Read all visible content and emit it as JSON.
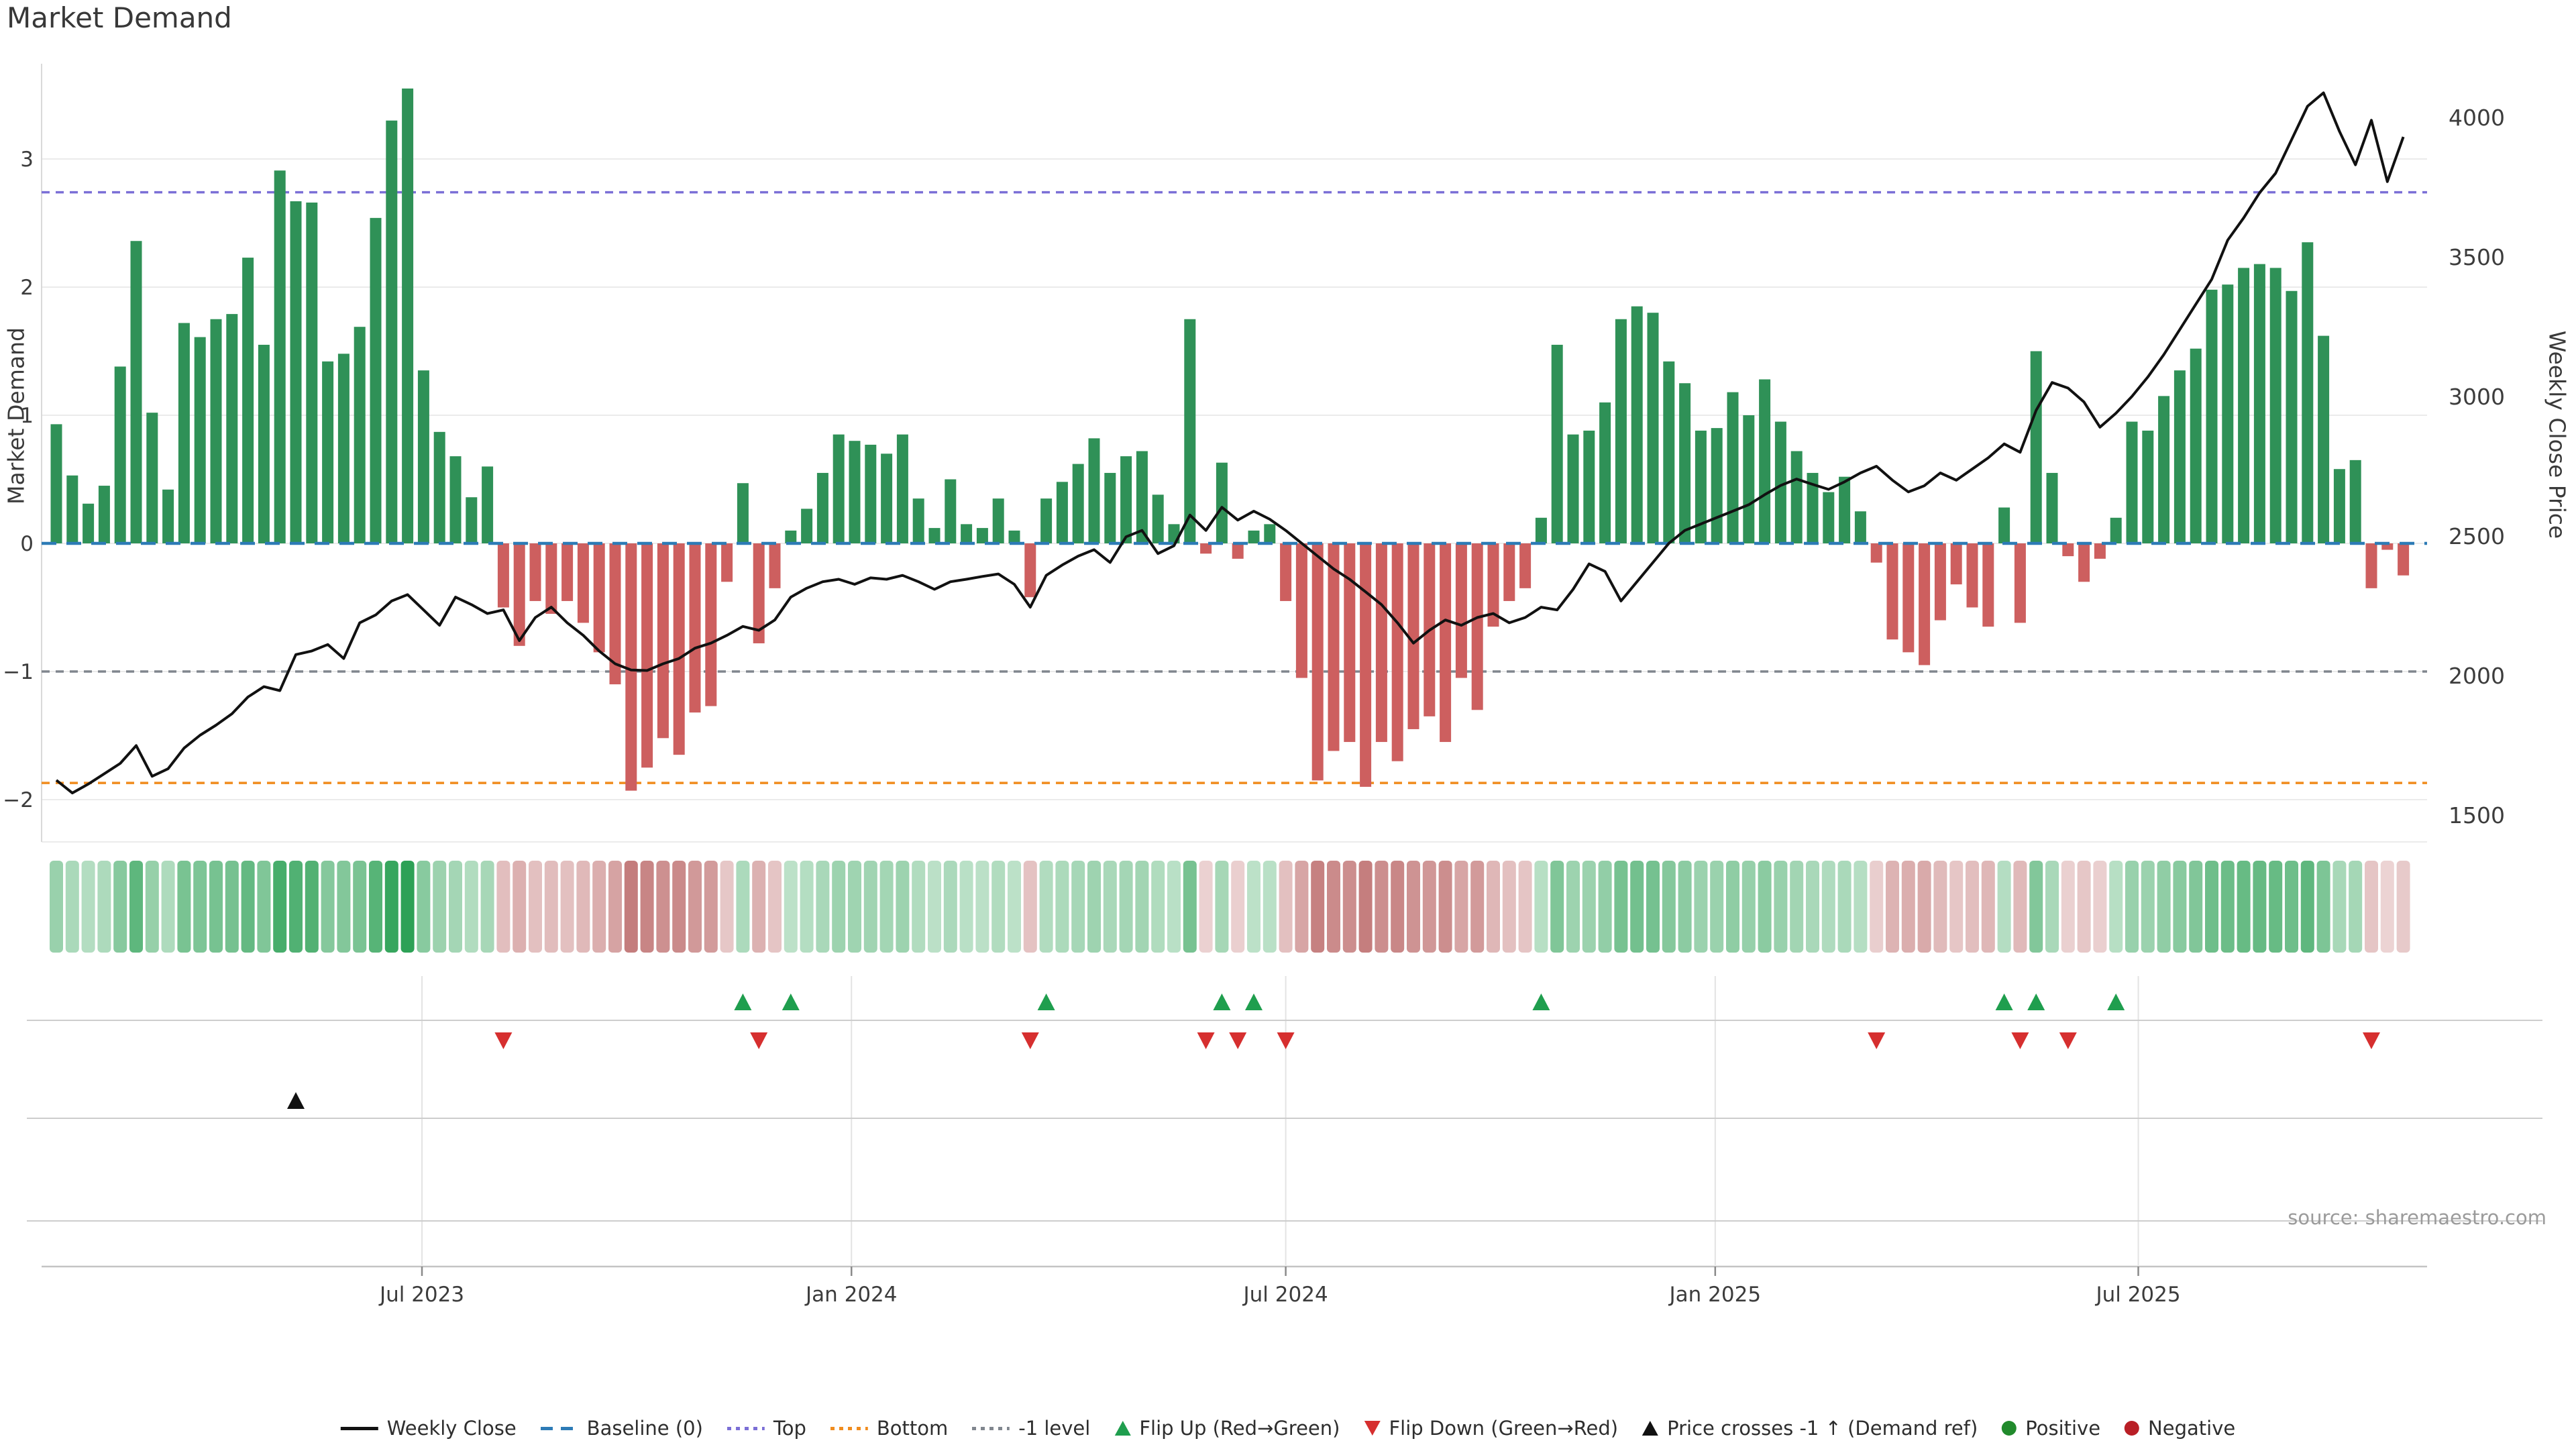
{
  "title": "Market Demand",
  "source": "source: sharemaestro.com",
  "axes": {
    "left": {
      "label": "Market Demand",
      "ticks": [
        3,
        2,
        1,
        0,
        -1,
        -2
      ]
    },
    "right": {
      "label": "Weekly Close Price",
      "ticks": [
        4000,
        3500,
        3000,
        2500,
        2000,
        1500
      ]
    },
    "x": {
      "tick_labels": [
        "Jul 2023",
        "Jan 2024",
        "Jul 2024",
        "Jan 2025",
        "Jul 2025"
      ],
      "tick_weeks": [
        22.9,
        49.8,
        77.0,
        103.9,
        130.4
      ]
    }
  },
  "reference_lines": [
    {
      "id": "baseline",
      "label": "Baseline (0)",
      "value": 0,
      "color": "#2d7bb6"
    },
    {
      "id": "top",
      "label": "Top",
      "value": 2.74,
      "color": "#7b6fd6"
    },
    {
      "id": "bottom",
      "label": "Bottom",
      "value": -1.87,
      "color": "#f08c1e"
    },
    {
      "id": "minus_one",
      "label": "-1 level",
      "value": -1,
      "color": "#80868e"
    }
  ],
  "colors": {
    "positive_bar": "#2f9157",
    "negative_bar": "#cd5f5f",
    "price_line": "#111111",
    "flip_up_marker": "#1f9e4e",
    "flip_down_marker": "#d62f2f",
    "price_cross_marker": "#111111",
    "grid": "#ebebeb",
    "panel_grid": "#cdcdcd",
    "heat_green_max": "#2da156",
    "heat_green_min": "#e9f5ec",
    "heat_red_max": "#c47c7c",
    "heat_red_min": "#f8eeee"
  },
  "chart_data": {
    "type": "bar+line",
    "title": "Market Demand",
    "left_axis_range": [
      -2.35,
      3.75
    ],
    "right_axis_range": [
      1450,
      4200
    ],
    "heatmap_note": "intensity strip below main chart mirrors sign and magnitude of Market Demand values",
    "series": [
      {
        "name": "Market Demand",
        "type": "bar",
        "axis": "left",
        "values": [
          0.93,
          0.53,
          0.31,
          0.45,
          1.38,
          2.36,
          1.02,
          0.42,
          1.72,
          1.61,
          1.75,
          1.79,
          2.23,
          1.55,
          2.91,
          2.67,
          2.66,
          1.42,
          1.48,
          1.69,
          2.54,
          3.3,
          3.55,
          1.35,
          0.87,
          0.68,
          0.36,
          0.6,
          -0.5,
          -0.8,
          -0.45,
          -0.55,
          -0.45,
          -0.62,
          -0.85,
          -1.1,
          -1.93,
          -1.75,
          -1.52,
          -1.65,
          -1.32,
          -1.27,
          -0.3,
          0.47,
          -0.78,
          -0.35,
          0.1,
          0.27,
          0.55,
          0.85,
          0.8,
          0.77,
          0.7,
          0.85,
          0.35,
          0.12,
          0.5,
          0.15,
          0.12,
          0.35,
          0.1,
          -0.42,
          0.35,
          0.48,
          0.62,
          0.82,
          0.55,
          0.68,
          0.72,
          0.38,
          0.15,
          1.75,
          -0.08,
          0.63,
          -0.12,
          0.1,
          0.15,
          -0.45,
          -1.05,
          -1.85,
          -1.62,
          -1.55,
          -1.9,
          -1.55,
          -1.7,
          -1.45,
          -1.35,
          -1.55,
          -1.05,
          -1.3,
          -0.65,
          -0.45,
          -0.35,
          0.2,
          1.55,
          0.85,
          0.88,
          1.1,
          1.75,
          1.85,
          1.8,
          1.42,
          1.25,
          0.88,
          0.9,
          1.18,
          1.0,
          1.28,
          0.95,
          0.72,
          0.55,
          0.4,
          0.52,
          0.25,
          -0.15,
          -0.75,
          -0.85,
          -0.95,
          -0.6,
          -0.32,
          -0.5,
          -0.65,
          0.28,
          -0.62,
          1.5,
          0.55,
          -0.1,
          -0.3,
          -0.12,
          0.2,
          0.95,
          0.88,
          1.15,
          1.35,
          1.52,
          1.98,
          2.02,
          2.15,
          2.18,
          2.15,
          1.97,
          2.35,
          1.62,
          0.58,
          0.65,
          -0.35,
          -0.05,
          -0.25
        ]
      },
      {
        "name": "Weekly Close",
        "type": "line",
        "axis": "right",
        "values": [
          1625,
          1579,
          1611,
          1648,
          1685,
          1749,
          1639,
          1666,
          1740,
          1786,
          1822,
          1863,
          1923,
          1960,
          1946,
          2075,
          2088,
          2111,
          2061,
          2189,
          2217,
          2267,
          2290,
          2235,
          2180,
          2281,
          2254,
          2222,
          2235,
          2125,
          2208,
          2245,
          2189,
          2144,
          2088,
          2042,
          2020,
          2018,
          2042,
          2061,
          2098,
          2116,
          2144,
          2176,
          2162,
          2199,
          2281,
          2313,
          2336,
          2345,
          2327,
          2350,
          2345,
          2359,
          2336,
          2309,
          2336,
          2345,
          2355,
          2364,
          2327,
          2245,
          2359,
          2396,
          2428,
          2451,
          2405,
          2497,
          2520,
          2437,
          2465,
          2575,
          2520,
          2603,
          2557,
          2589,
          2560,
          2520,
          2474,
          2428,
          2382,
          2345,
          2300,
          2254,
          2189,
          2116,
          2162,
          2199,
          2180,
          2208,
          2222,
          2189,
          2208,
          2245,
          2235,
          2309,
          2400,
          2373,
          2267,
          2336,
          2405,
          2474,
          2520,
          2543,
          2566,
          2589,
          2612,
          2648,
          2681,
          2704,
          2685,
          2667,
          2694,
          2726,
          2750,
          2700,
          2658,
          2680,
          2726,
          2700,
          2740,
          2780,
          2830,
          2800,
          2950,
          3050,
          3030,
          2980,
          2890,
          2940,
          3000,
          3070,
          3150,
          3240,
          3330,
          3420,
          3560,
          3640,
          3730,
          3800,
          3920,
          4040,
          4088,
          3950,
          3830,
          3990,
          3770,
          3930
        ]
      }
    ],
    "markers": {
      "flip_up_weeks": [
        43,
        46,
        62,
        73,
        75,
        93,
        122,
        124,
        129
      ],
      "flip_down_weeks": [
        28,
        44,
        61,
        72,
        74,
        77,
        114,
        123,
        126,
        145
      ],
      "price_cross_minus1_weeks": [
        15
      ]
    }
  },
  "legend": [
    {
      "label": "Weekly Close",
      "swatch": "line",
      "color": "#111111"
    },
    {
      "label": "Baseline (0)",
      "swatch": "dashes",
      "color": "#2d7bb6"
    },
    {
      "label": "Top",
      "swatch": "dots",
      "color": "#7b6fd6"
    },
    {
      "label": "Bottom",
      "swatch": "dots",
      "color": "#f08c1e"
    },
    {
      "label": "-1 level",
      "swatch": "dots",
      "color": "#80868e"
    },
    {
      "label": "Flip Up (Red→Green)",
      "swatch": "tri-up",
      "color": "#1f9e4e"
    },
    {
      "label": "Flip Down (Green→Red)",
      "swatch": "tri-down",
      "color": "#d62f2f"
    },
    {
      "label": "Price crosses -1 ↑ (Demand ref)",
      "swatch": "tri-up",
      "color": "#111111"
    },
    {
      "label": "Positive",
      "swatch": "circle",
      "color": "#218a2c"
    },
    {
      "label": "Negative",
      "swatch": "circle",
      "color": "#b91f26"
    }
  ]
}
